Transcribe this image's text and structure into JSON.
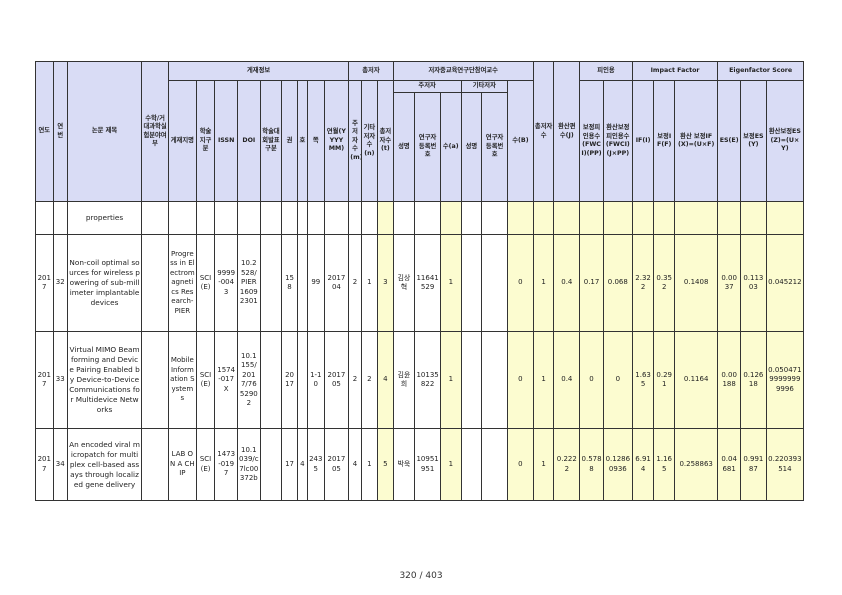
{
  "colors": {
    "header_bg": "#d9dcf5",
    "highlight": "#fcfcd0"
  },
  "header": {
    "year": "연도",
    "no": "연번",
    "title": "논문 제목",
    "thesis_flag": "수학/거대과학실험분야여부",
    "journal_group": "게재정보",
    "journal": "게재지명",
    "category": "학술지구분",
    "issn": "ISSN",
    "doi": "DOI",
    "univ_flag": "학술대회발표구분",
    "volume": "권",
    "issue": "호",
    "pages": "쪽",
    "date": "연월(YYYY MM)",
    "authors_group": "총저자",
    "main_count": "주저자수(m)",
    "other_count": "기타저자수(n)",
    "total_count": "총저자수(t)",
    "prof_group": "저자중교육연구단참여교수",
    "main_sub": "주저자",
    "other_sub": "기타저자",
    "name": "성명",
    "regno": "연구자등록번호",
    "count_a": "수(a)",
    "name2": "성명",
    "regno2": "연구자등록번호",
    "count_b": "수(B)",
    "total_auth": "총저자수",
    "score": "환산편수(J)",
    "cite_group": "피인용",
    "fwci": "보정피인용수(FWCI)(PP)",
    "fwci_conv": "환산보정피인용수(FWCI)(J×PP)",
    "if_group": "Impact Factor",
    "if": "IF(I)",
    "if_adj": "보정IF(F)",
    "if_conv": "환산 보정IF(X)=(U×F)",
    "es_group": "Eigenfactor Score",
    "es": "ES(E)",
    "es_adj": "보정ES(Y)",
    "es_conv": "환산보정ES(Z)=(U×Y)"
  },
  "continuation": {
    "title_tail": "properties"
  },
  "rows": [
    {
      "year": "2017",
      "no": "32",
      "title": "Non-coil optimal sources for wireless powering of sub-millimeter implantable devices",
      "flag": "",
      "journal": "Progress in Electromagnetics Research-PIER",
      "category": "SCI(E)",
      "issn": "9999-0043",
      "doi": "10.2528/PIER16092301",
      "univ": "",
      "volume": "158",
      "issue": "",
      "pages": "99",
      "date": "201704",
      "m": "2",
      "n": "1",
      "t": "3",
      "name": "김상혁",
      "regno": "11641529",
      "a": "1",
      "name2": "",
      "regno2": "",
      "b": "0",
      "total_auth": "1",
      "score": "0.4",
      "fwci": "0.17",
      "fwci_conv": "0.068",
      "if": "2.322",
      "if_adj": "0.352",
      "if_conv": "0.1408",
      "es": "0.0037",
      "es_adj": "0.11303",
      "es_conv": "0.045212"
    },
    {
      "year": "2017",
      "no": "33",
      "title": "Virtual MIMO Beamforming and Device Pairing Enabled by Device-to-Device Communications for Multidevice Networks",
      "flag": "",
      "journal": "Mobile Information Systems",
      "category": "SCI(E)",
      "issn": "1574-017X",
      "doi": "10.1155/2017/7652902",
      "univ": "",
      "volume": "2017",
      "issue": "",
      "pages": "1-10",
      "date": "201705",
      "m": "2",
      "n": "2",
      "t": "4",
      "name": "김윤희",
      "regno": "10135822",
      "a": "1",
      "name2": "",
      "regno2": "",
      "b": "0",
      "total_auth": "1",
      "score": "0.4",
      "fwci": "0",
      "fwci_conv": "0",
      "if": "1.635",
      "if_adj": "0.291",
      "if_conv": "0.1164",
      "es": "0.00188",
      "es_adj": "0.12618",
      "es_conv": "0.05047199999999996"
    },
    {
      "year": "2017",
      "no": "34",
      "title": "An encoded viral micropatch for multiplex cell-based assays through localized gene delivery",
      "flag": "",
      "journal": "LAB ON A CHIP",
      "category": "SCI(E)",
      "issn": "1473-0197",
      "doi": "10.1039/c7lc00372b",
      "univ": "",
      "volume": "17",
      "issue": "4",
      "pages": "2435",
      "date": "201705",
      "m": "4",
      "n": "1",
      "t": "5",
      "name": "박욱",
      "regno": "10951951",
      "a": "1",
      "name2": "",
      "regno2": "",
      "b": "0",
      "total_auth": "1",
      "score": "0.2222",
      "fwci": "0.5788",
      "fwci_conv": "0.12860936",
      "if": "6.914",
      "if_adj": "1.165",
      "if_conv": "0.258863",
      "es": "0.04681",
      "es_adj": "0.99187",
      "es_conv": "0.220393514"
    }
  ],
  "footer": {
    "page": "320 / 403"
  }
}
